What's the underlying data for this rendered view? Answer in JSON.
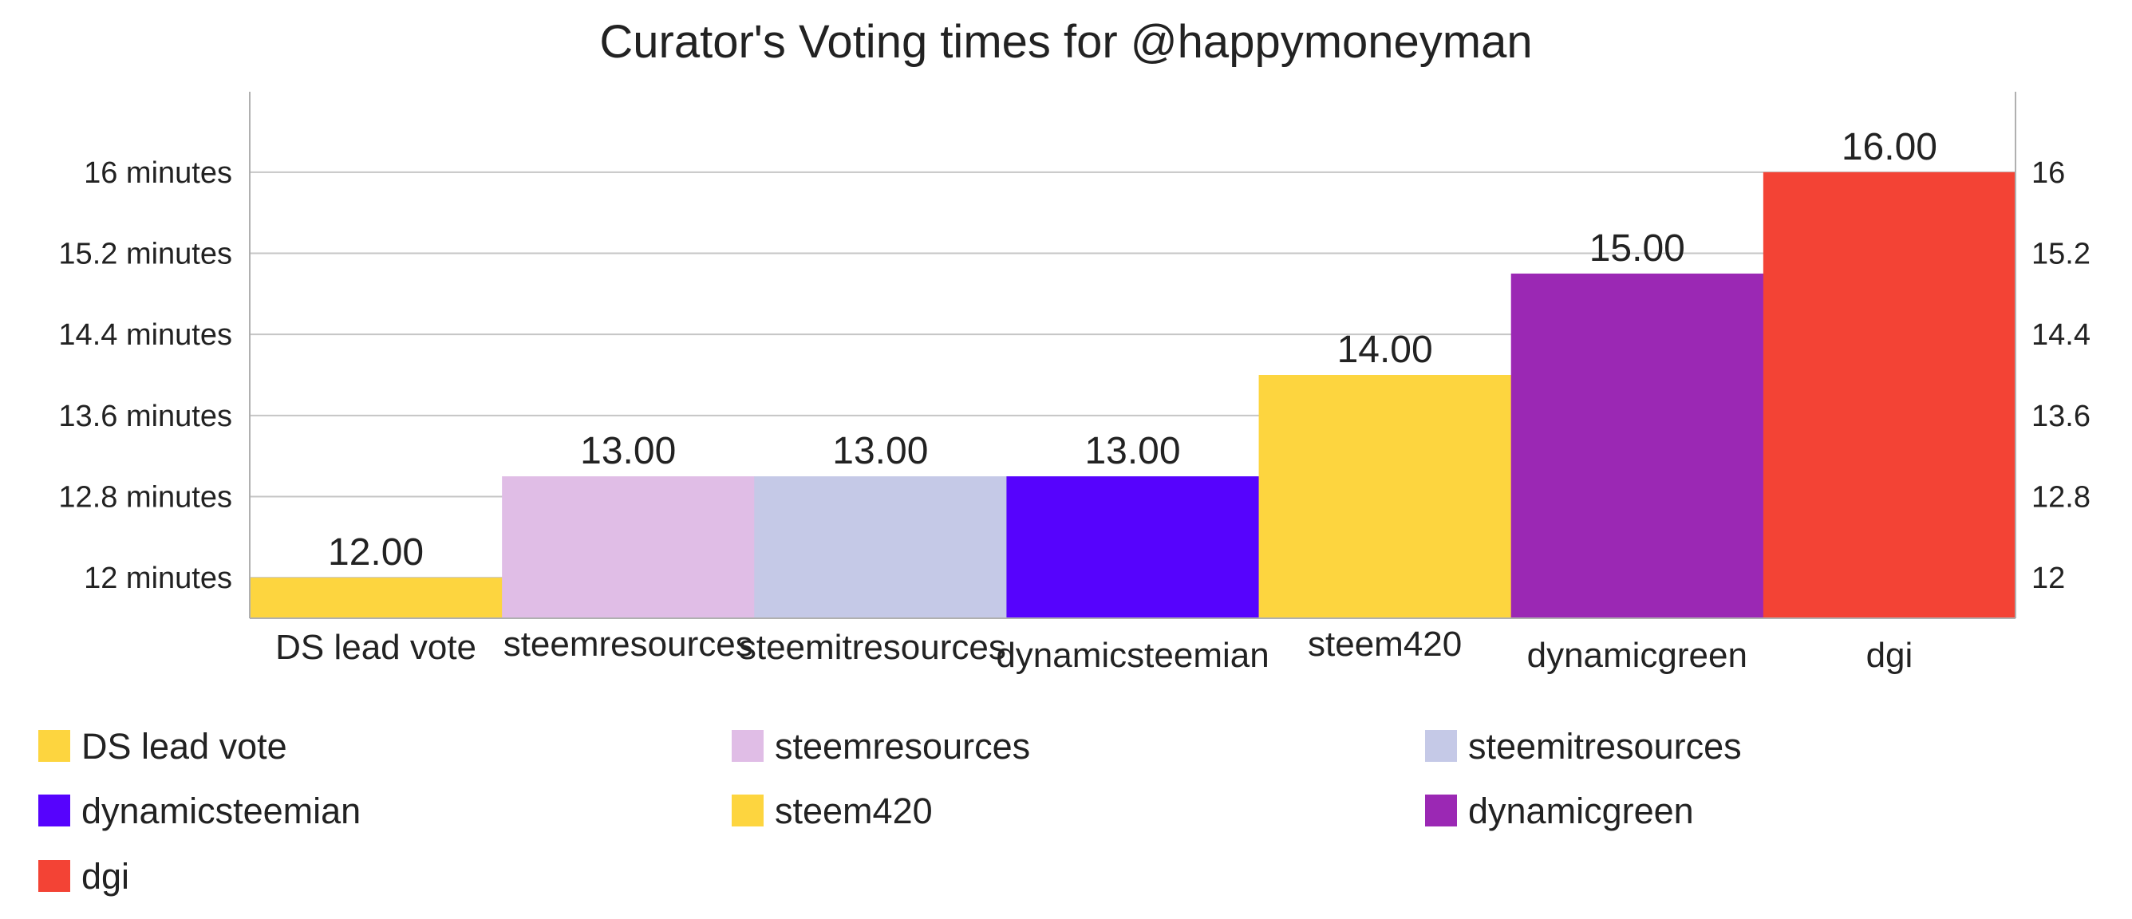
{
  "chart_data": {
    "type": "bar",
    "title": "Curator's Voting times for @happymoneyman",
    "xlabel": "",
    "ylabel": "",
    "categories": [
      "DS lead vote",
      "steemresources",
      "steemitresources",
      "dynamicsteemian",
      "steem420",
      "dynamicgreen",
      "dgi"
    ],
    "values": [
      12,
      13,
      13,
      13,
      14,
      15,
      16
    ],
    "data_labels": [
      "12.00",
      "13.00",
      "13.00",
      "13.00",
      "14.00",
      "15.00",
      "16.00"
    ],
    "colors": [
      "#fdd53f",
      "#e0bde6",
      "#c5c9e7",
      "#5603fd",
      "#fdd53f",
      "#9b28b4",
      "#f34335"
    ],
    "ylim": [
      11.6,
      16.4
    ],
    "yticks": [
      12,
      12.8,
      13.6,
      14.4,
      15.2,
      16
    ],
    "ytick_labels_left": [
      "12 minutes",
      "12.8 minutes",
      "13.6 minutes",
      "14.4 minutes",
      "15.2 minutes",
      "16 minutes"
    ],
    "ytick_labels_right": [
      "12",
      "12.8",
      "13.6",
      "14.4",
      "15.2",
      "16"
    ],
    "grid": true,
    "legend_position": "bottom",
    "legend": [
      {
        "label": "DS lead vote",
        "color": "#fdd53f"
      },
      {
        "label": "steemresources",
        "color": "#e0bde6"
      },
      {
        "label": "steemitresources",
        "color": "#c5c9e7"
      },
      {
        "label": "dynamicsteemian",
        "color": "#5603fd"
      },
      {
        "label": "steem420",
        "color": "#fdd53f"
      },
      {
        "label": "dynamicgreen",
        "color": "#9b28b4"
      },
      {
        "label": "dgi",
        "color": "#f34335"
      }
    ]
  }
}
